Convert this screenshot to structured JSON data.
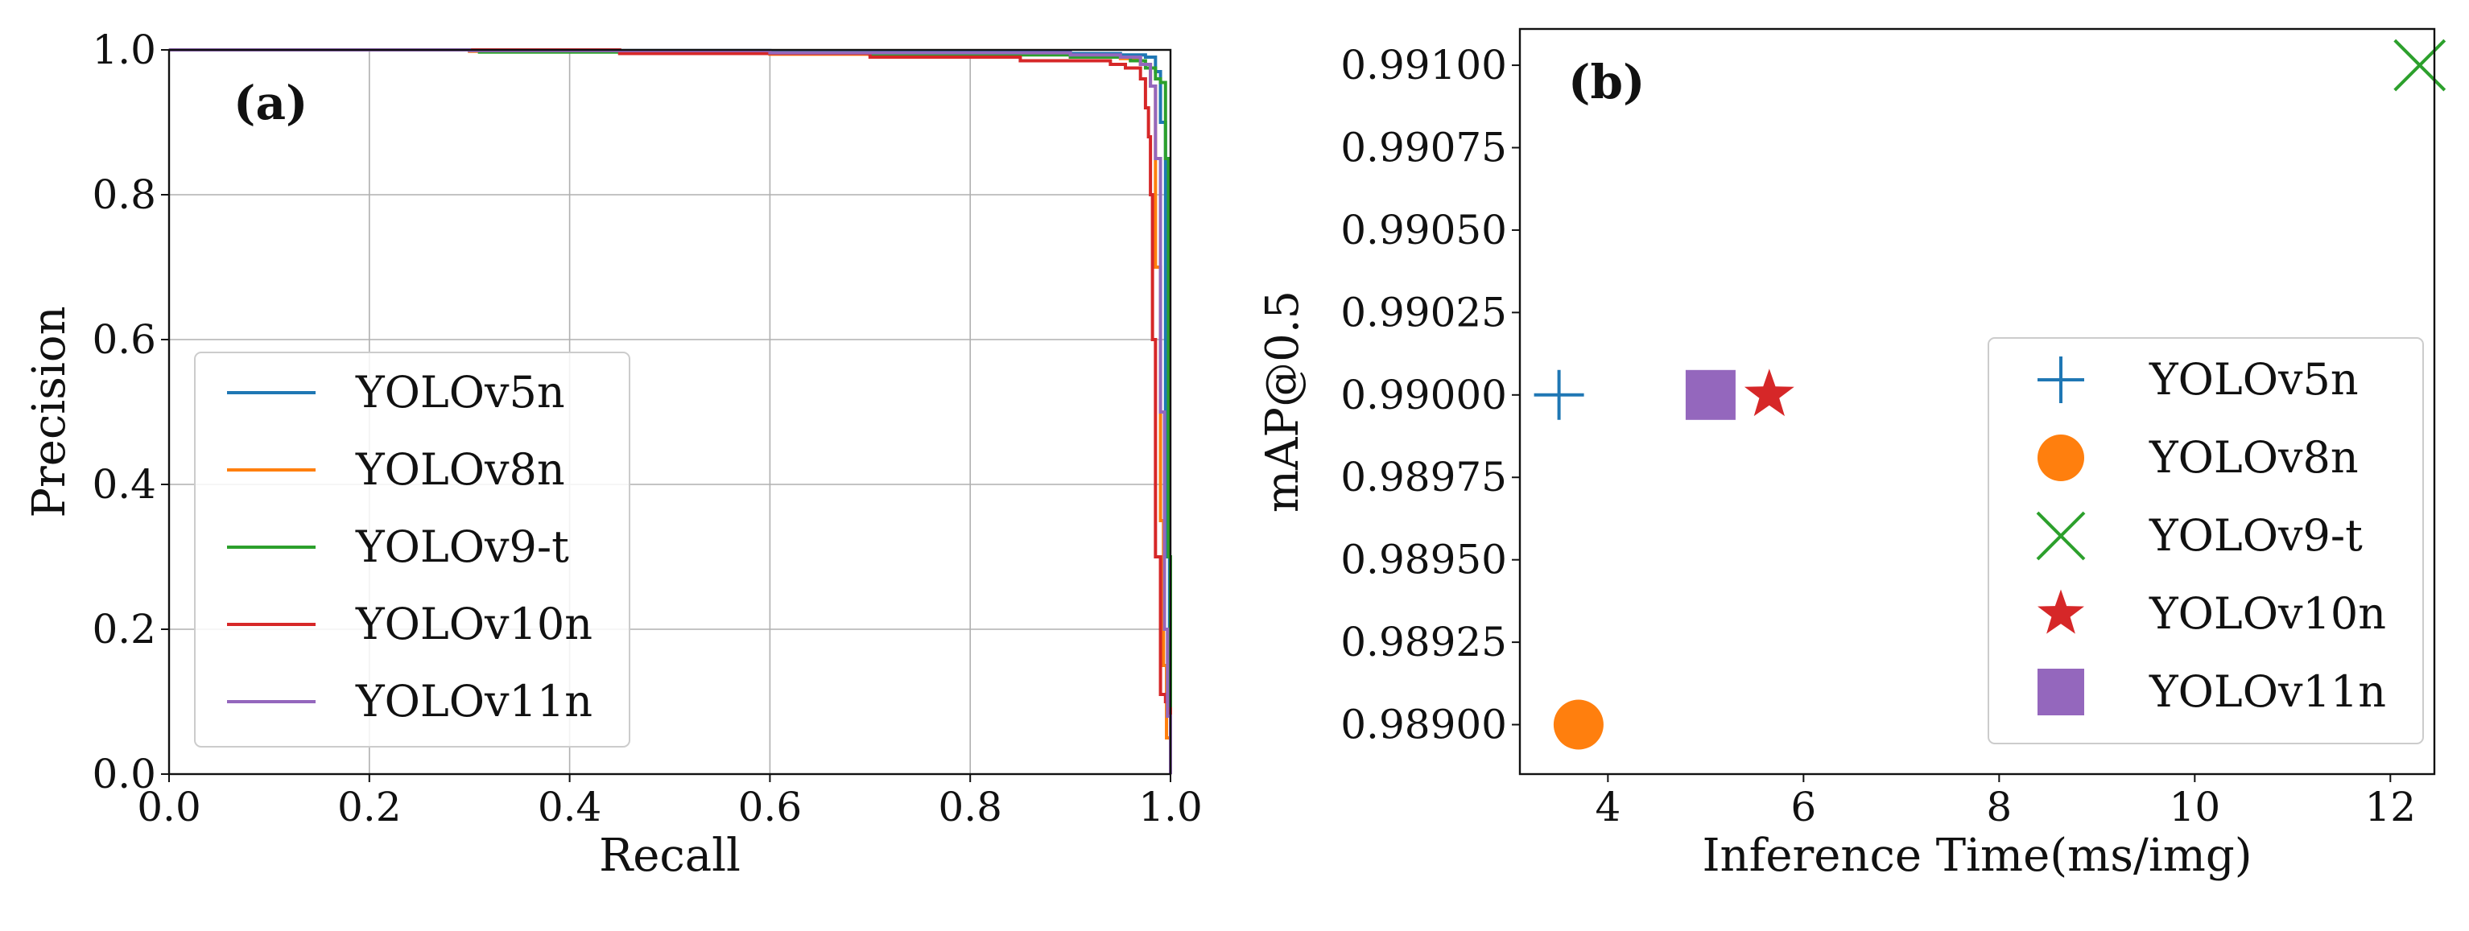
{
  "chart_data": [
    {
      "type": "line",
      "panel_label": "(a)",
      "xlabel": "Recall",
      "ylabel": "Precision",
      "xlim": [
        0.0,
        1.0
      ],
      "ylim": [
        0.0,
        1.0
      ],
      "xticks": [
        0.0,
        0.2,
        0.4,
        0.6,
        0.8,
        1.0
      ],
      "yticks": [
        0.0,
        0.2,
        0.4,
        0.6,
        0.8,
        1.0
      ],
      "xtick_labels": [
        "0.0",
        "0.2",
        "0.4",
        "0.6",
        "0.8",
        "1.0"
      ],
      "ytick_labels": [
        "0.0",
        "0.2",
        "0.4",
        "0.6",
        "0.8",
        "1.0"
      ],
      "grid": true,
      "legend_position": "center-left",
      "series": [
        {
          "name": "YOLOv5n",
          "color": "#1f77b4",
          "x": [
            0.0,
            0.3,
            0.6,
            0.9,
            0.95,
            0.975,
            0.985,
            0.99,
            0.995,
            0.997,
            0.999,
            1.0
          ],
          "y": [
            1.0,
            0.999,
            0.997,
            0.995,
            0.993,
            0.99,
            0.97,
            0.9,
            0.5,
            0.3,
            0.1,
            0.0
          ]
        },
        {
          "name": "YOLOv8n",
          "color": "#ff7f0e",
          "x": [
            0.0,
            0.3,
            0.6,
            0.9,
            0.95,
            0.97,
            0.98,
            0.985,
            0.99,
            0.993,
            0.996,
            1.0
          ],
          "y": [
            1.0,
            0.998,
            0.994,
            0.99,
            0.988,
            0.98,
            0.95,
            0.7,
            0.35,
            0.15,
            0.05,
            0.0
          ]
        },
        {
          "name": "YOLOv9-t",
          "color": "#2ca02c",
          "x": [
            0.0,
            0.31,
            0.45,
            0.7,
            0.9,
            0.96,
            0.975,
            0.985,
            0.99,
            0.995,
            0.998,
            1.0
          ],
          "y": [
            1.0,
            0.997,
            0.996,
            0.993,
            0.99,
            0.985,
            0.975,
            0.96,
            0.955,
            0.85,
            0.3,
            0.0
          ]
        },
        {
          "name": "YOLOv10n",
          "color": "#d62728",
          "x": [
            0.0,
            0.45,
            0.7,
            0.85,
            0.94,
            0.955,
            0.97,
            0.975,
            0.978,
            0.98,
            0.982,
            0.985,
            0.99,
            0.995,
            0.997,
            1.0
          ],
          "y": [
            1.0,
            0.995,
            0.99,
            0.985,
            0.98,
            0.975,
            0.96,
            0.92,
            0.88,
            0.8,
            0.6,
            0.3,
            0.11,
            0.1,
            0.09,
            0.0
          ]
        },
        {
          "name": "YOLOv11n",
          "color": "#9467bd",
          "x": [
            0.0,
            0.3,
            0.6,
            0.9,
            0.95,
            0.97,
            0.98,
            0.985,
            0.99,
            0.994,
            0.997,
            1.0
          ],
          "y": [
            1.0,
            0.999,
            0.996,
            0.993,
            0.99,
            0.98,
            0.95,
            0.85,
            0.5,
            0.2,
            0.08,
            0.0
          ]
        }
      ]
    },
    {
      "type": "scatter",
      "panel_label": "(b)",
      "xlabel": "Inference Time(ms/img)",
      "ylabel": "mAP@0.5",
      "xlim": [
        3.1,
        12.45
      ],
      "ylim": [
        0.98885,
        0.99111
      ],
      "xticks": [
        4,
        6,
        8,
        10,
        12
      ],
      "xtick_labels": [
        "4",
        "6",
        "8",
        "10",
        "12"
      ],
      "yticks": [
        0.989,
        0.98925,
        0.9895,
        0.98975,
        0.99,
        0.99025,
        0.9905,
        0.99075,
        0.991
      ],
      "ytick_labels": [
        "0.98900",
        "0.98925",
        "0.98950",
        "0.98975",
        "0.99000",
        "0.99025",
        "0.99050",
        "0.99075",
        "0.99100"
      ],
      "grid": false,
      "legend_position": "right",
      "series": [
        {
          "name": "YOLOv5n",
          "color": "#1f77b4",
          "marker": "plus",
          "x": 3.5,
          "y": 0.99
        },
        {
          "name": "YOLOv8n",
          "color": "#ff7f0e",
          "marker": "circle",
          "x": 3.7,
          "y": 0.989
        },
        {
          "name": "YOLOv9-t",
          "color": "#2ca02c",
          "marker": "x",
          "x": 12.3,
          "y": 0.991
        },
        {
          "name": "YOLOv10n",
          "color": "#d62728",
          "marker": "star",
          "x": 5.65,
          "y": 0.99
        },
        {
          "name": "YOLOv11n",
          "color": "#9467bd",
          "marker": "square",
          "x": 5.05,
          "y": 0.99
        }
      ]
    }
  ]
}
